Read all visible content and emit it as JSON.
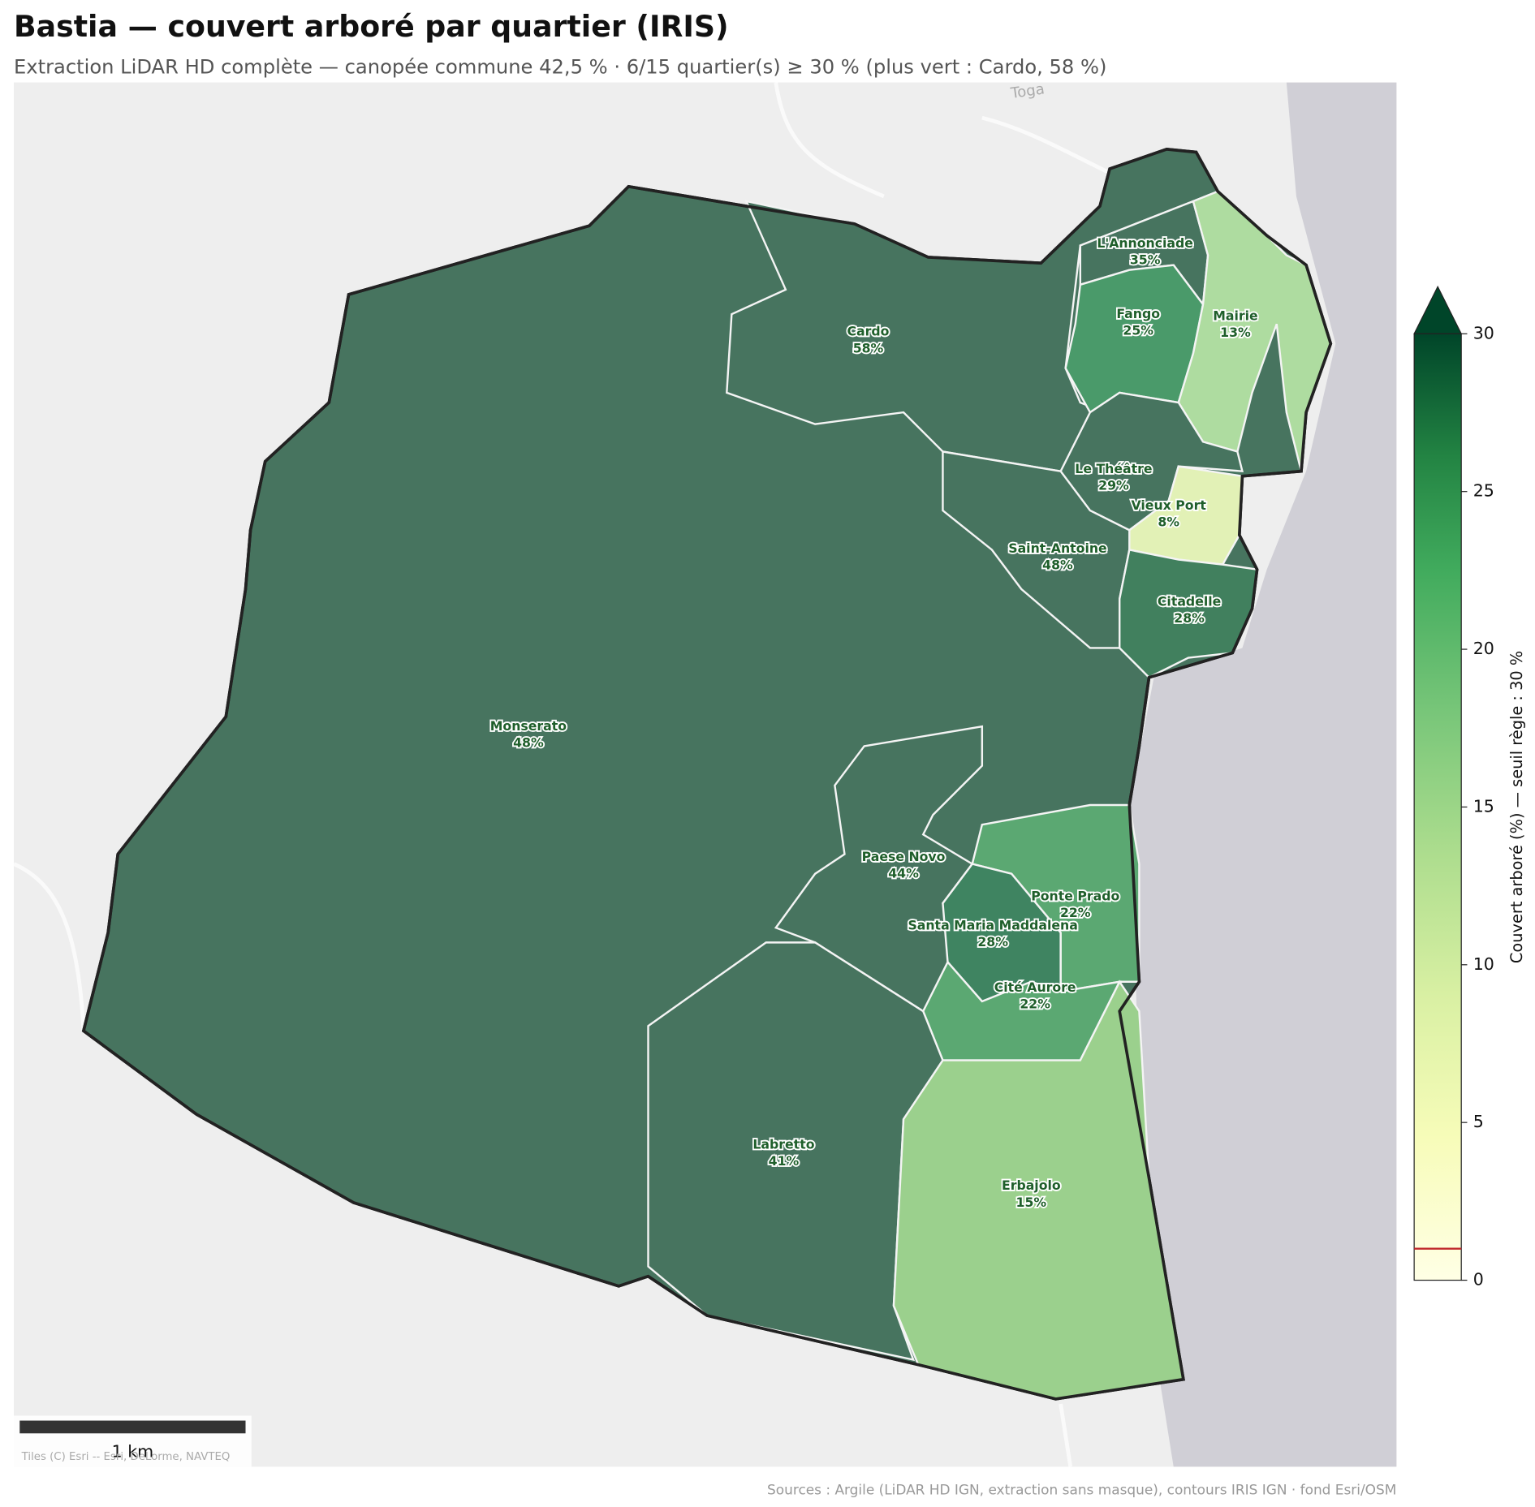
{
  "title": "Bastia — couvert arboré par quartier (IRIS)",
  "subtitle": "Extraction LiDAR HD complète — canopée commune 42,5 % · 6/15 quartier(s) ≥ 30 % (plus vert : Cardo, 58 %)",
  "place_label": "Toga",
  "districts": [
    {
      "name": "Monserato",
      "value": 48,
      "value_label": "48%",
      "color": "#47745f"
    },
    {
      "name": "Cardo",
      "value": 58,
      "value_label": "58%",
      "color": "#47745f"
    },
    {
      "name": "L'Annonciade",
      "value": 35,
      "value_label": "35%",
      "color": "#47745f"
    },
    {
      "name": "Fango",
      "value": 25,
      "value_label": "25%",
      "color": "#4a9a6a"
    },
    {
      "name": "Mairie",
      "value": 13,
      "value_label": "13%",
      "color": "#aedca0"
    },
    {
      "name": "Le Théâtre",
      "value": 29,
      "value_label": "29%",
      "color": "#47745f"
    },
    {
      "name": "Vieux Port",
      "value": 8,
      "value_label": "8%",
      "color": "#e2f1b6"
    },
    {
      "name": "Saint-Antoine",
      "value": 48,
      "value_label": "48%",
      "color": "#47745f"
    },
    {
      "name": "Citadelle",
      "value": 28,
      "value_label": "28%",
      "color": "#41805e"
    },
    {
      "name": "Paese Novo",
      "value": 44,
      "value_label": "44%",
      "color": "#47745f"
    },
    {
      "name": "Ponte Prado",
      "value": 22,
      "value_label": "22%",
      "color": "#5ba872"
    },
    {
      "name": "Santa Maria Maddalena",
      "value": 28,
      "value_label": "28%",
      "color": "#3f8461"
    },
    {
      "name": "Cité Aurore",
      "value": 22,
      "value_label": "22%",
      "color": "#5ba872"
    },
    {
      "name": "Labretto",
      "value": 41,
      "value_label": "41%",
      "color": "#47745f"
    },
    {
      "name": "Erbajolo",
      "value": 15,
      "value_label": "15%",
      "color": "#9bd08d"
    }
  ],
  "colorbar": {
    "label": "Couvert arboré (%) — seuil règle : 30 %",
    "lim": [
      0,
      30
    ],
    "ticks": [
      0,
      5,
      10,
      15,
      20,
      25,
      30
    ],
    "threshold": 1,
    "threshold_color": "#c0282d"
  },
  "scale_bar": "1 km",
  "tiles": "Tiles (C) Esri -- Esri, DeLorme, NAVTEQ",
  "sources": "Sources : Argile (LiDAR HD IGN, extraction sans masque), contours IRIS IGN · fond Esri/OSM"
}
